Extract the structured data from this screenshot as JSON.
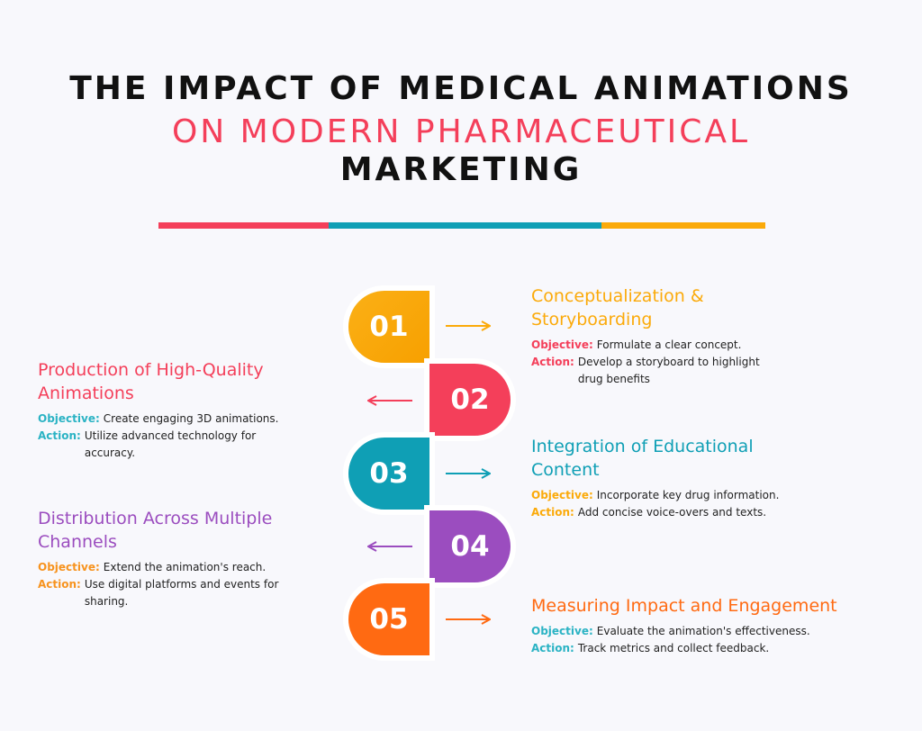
{
  "title": {
    "line1": "THE IMPACT OF MEDICAL ANIMATIONS",
    "line2": "ON MODERN PHARMACEUTICAL",
    "line3": "MARKETING"
  },
  "colors": {
    "yellow": "#fbaa0a",
    "red": "#f43f5a",
    "teal": "#0f9fb5",
    "purple": "#9b4dbf",
    "orange": "#ff6a12"
  },
  "steps": [
    {
      "number": "01",
      "title": "Conceptualization & Storyboarding",
      "objective_label": "Objective:",
      "objective": "Formulate a clear concept.",
      "action_label": "Action:",
      "action": "Develop a storyboard to highlight drug benefits"
    },
    {
      "number": "02",
      "title": "Production of High-Quality Animations",
      "objective_label": "Objective:",
      "objective": "Create engaging 3D animations.",
      "action_label": "Action:",
      "action": "Utilize advanced technology for accuracy."
    },
    {
      "number": "03",
      "title": "Integration of Educational Content",
      "objective_label": "Objective:",
      "objective": "Incorporate key drug information.",
      "action_label": "Action:",
      "action": "Add concise voice-overs and texts."
    },
    {
      "number": "04",
      "title": "Distribution Across Multiple Channels",
      "objective_label": "Objective:",
      "objective": "Extend the animation's reach.",
      "action_label": "Action:",
      "action": "Use digital platforms and events for sharing."
    },
    {
      "number": "05",
      "title": "Measuring Impact and Engagement",
      "objective_label": "Objective:",
      "objective": "Evaluate the animation's effectiveness.",
      "action_label": "Action:",
      "action": "Track metrics and collect feedback."
    }
  ]
}
